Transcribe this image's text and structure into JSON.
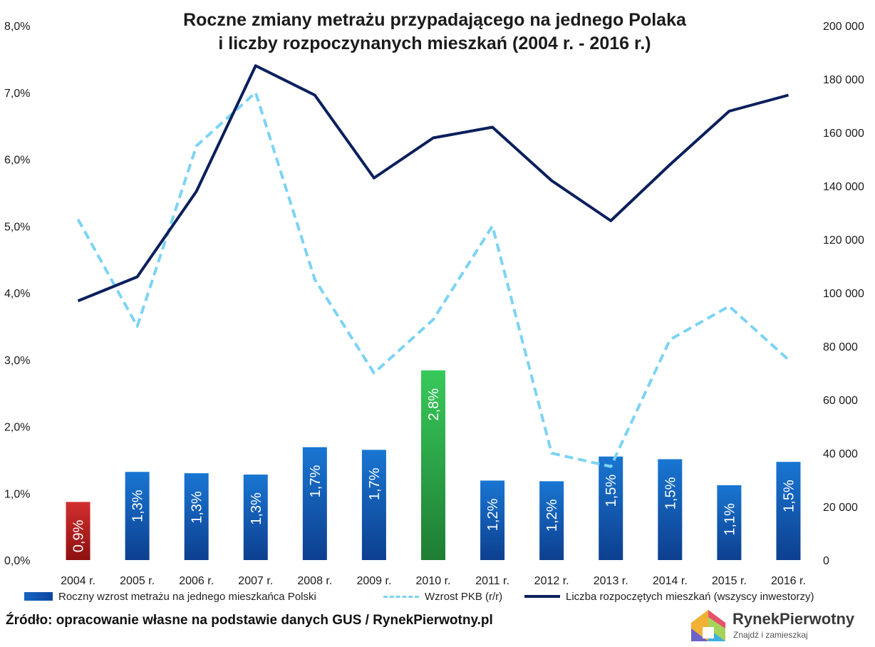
{
  "title_line1": "Roczne zmiany metrażu przypadającego na jednego Polaka",
  "title_line2": "i liczby rozpoczynanych mieszkań (2004 r. - 2016 r.)",
  "source": "Źródło: opracowanie własne na podstawie danych GUS / RynekPierwotny.pl",
  "logo": {
    "name": "RynekPierwotny",
    "tagline": "Znajdź i zamieszkaj"
  },
  "legend": {
    "bars": "Roczny wzrost metrażu na jednego mieszkańca Polski",
    "gdp": "Wzrost PKB (r/r)",
    "housing": "Liczba rozpoczętych mieszkań (wszyscy inwestorzy)"
  },
  "colors": {
    "bar_default": "#1565c0",
    "bar_min": "#c62828",
    "bar_max": "#2bb24c",
    "gdp_line": "#7cd3f5",
    "housing_line": "#0b1f5c"
  },
  "chart_data": {
    "type": "bar",
    "title": "Roczne zmiany metrażu przypadającego na jednego Polaka i liczby rozpoczynanych mieszkań (2004 r. - 2016 r.)",
    "categories": [
      "2004 r.",
      "2005 r.",
      "2006 r.",
      "2007 r.",
      "2008 r.",
      "2009 r.",
      "2010 r.",
      "2011 r.",
      "2012 r.",
      "2013 r.",
      "2014 r.",
      "2015 r.",
      "2016 r."
    ],
    "left_axis": {
      "ylim": [
        0,
        8
      ],
      "ticks": [
        "0,0%",
        "1,0%",
        "2,0%",
        "3,0%",
        "4,0%",
        "5,0%",
        "6,0%",
        "7,0%",
        "8,0%"
      ]
    },
    "right_axis": {
      "ylim": [
        0,
        200000
      ],
      "ticks": [
        "0",
        "20 000",
        "40 000",
        "60 000",
        "80 000",
        "100 000",
        "120 000",
        "140 000",
        "160 000",
        "180 000",
        "200 000"
      ]
    },
    "series": [
      {
        "name": "Roczny wzrost metrażu na jednego mieszkańca Polski",
        "kind": "bar",
        "axis": "left",
        "values": [
          0.87,
          1.32,
          1.3,
          1.28,
          1.69,
          1.65,
          2.84,
          1.19,
          1.18,
          1.55,
          1.51,
          1.12,
          1.47
        ],
        "labels": [
          "0,9%",
          "1,3%",
          "1,3%",
          "1,3%",
          "1,7%",
          "1,7%",
          "2,8%",
          "1,2%",
          "1,2%",
          "1,5%",
          "1,5%",
          "1,1%",
          "1,5%"
        ]
      },
      {
        "name": "Wzrost PKB (r/r)",
        "kind": "line-dashed",
        "axis": "left",
        "values": [
          5.1,
          3.5,
          6.2,
          7.0,
          4.2,
          2.8,
          3.6,
          5.0,
          1.6,
          1.4,
          3.3,
          3.8,
          3.0
        ]
      },
      {
        "name": "Liczba rozpoczętych mieszkań (wszyscy inwestorzy)",
        "kind": "line",
        "axis": "right",
        "values": [
          97000,
          106000,
          138000,
          185000,
          174000,
          143000,
          158000,
          162000,
          142000,
          127000,
          148000,
          168000,
          174000
        ]
      }
    ],
    "grid": false,
    "legend_position": "bottom"
  }
}
